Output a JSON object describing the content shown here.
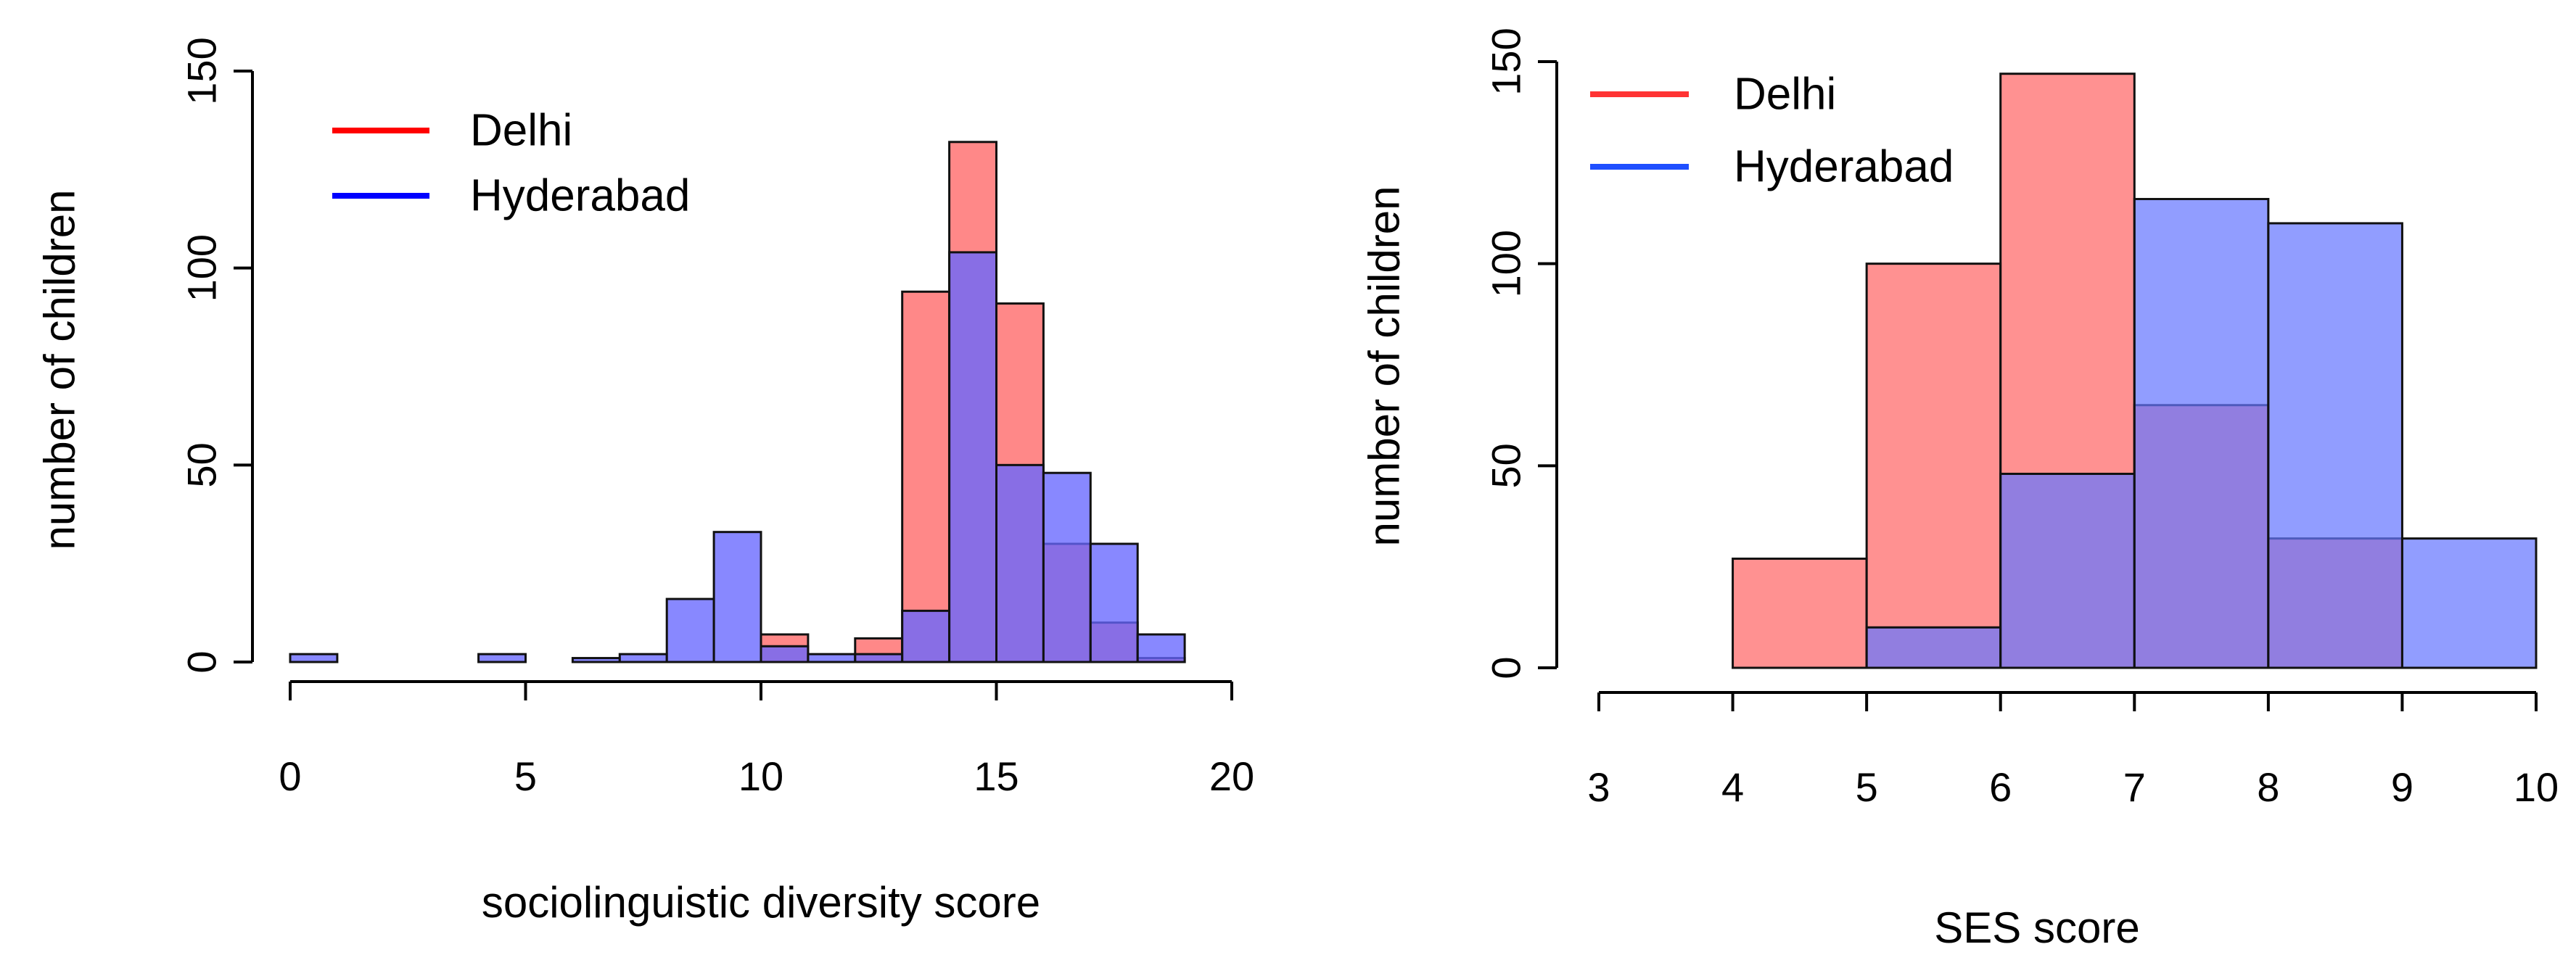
{
  "chart_data": [
    {
      "type": "bar",
      "subtype": "overlapping-histogram",
      "title": "",
      "xlabel": "sociolinguistic diversity score",
      "ylabel": "number of children",
      "xlim": [
        0,
        20
      ],
      "ylim": [
        0,
        150
      ],
      "xticks": [
        0,
        5,
        10,
        15,
        20
      ],
      "yticks": [
        0,
        50,
        100,
        150
      ],
      "grid": false,
      "legend": {
        "position": "top-left",
        "entries": [
          "Delhi",
          "Hyderabad"
        ]
      },
      "series": [
        {
          "name": "Delhi",
          "color": "#ff0000",
          "fill": "#ff6666",
          "bins": [
            {
              "x0": 10,
              "x1": 11,
              "value": 7
            },
            {
              "x0": 12,
              "x1": 13,
              "value": 6
            },
            {
              "x0": 13,
              "x1": 14,
              "value": 94
            },
            {
              "x0": 14,
              "x1": 15,
              "value": 132
            },
            {
              "x0": 15,
              "x1": 16,
              "value": 91
            },
            {
              "x0": 16,
              "x1": 17,
              "value": 30
            },
            {
              "x0": 17,
              "x1": 18,
              "value": 10
            },
            {
              "x0": 18,
              "x1": 19,
              "value": 1
            }
          ]
        },
        {
          "name": "Hyderabad",
          "color": "#0000ff",
          "fill": "#6666ff",
          "bins": [
            {
              "x0": 0,
              "x1": 1,
              "value": 2
            },
            {
              "x0": 4,
              "x1": 5,
              "value": 2
            },
            {
              "x0": 6,
              "x1": 7,
              "value": 1
            },
            {
              "x0": 7,
              "x1": 8,
              "value": 2
            },
            {
              "x0": 8,
              "x1": 9,
              "value": 16
            },
            {
              "x0": 9,
              "x1": 10,
              "value": 33
            },
            {
              "x0": 10,
              "x1": 11,
              "value": 4
            },
            {
              "x0": 11,
              "x1": 12,
              "value": 2
            },
            {
              "x0": 12,
              "x1": 13,
              "value": 2
            },
            {
              "x0": 13,
              "x1": 14,
              "value": 13
            },
            {
              "x0": 14,
              "x1": 15,
              "value": 104
            },
            {
              "x0": 15,
              "x1": 16,
              "value": 50
            },
            {
              "x0": 16,
              "x1": 17,
              "value": 48
            },
            {
              "x0": 17,
              "x1": 18,
              "value": 30
            },
            {
              "x0": 18,
              "x1": 19,
              "value": 7
            }
          ]
        }
      ]
    },
    {
      "type": "bar",
      "subtype": "overlapping-histogram",
      "title": "",
      "xlabel": "SES score",
      "ylabel": "number of children",
      "xlim": [
        3,
        10
      ],
      "ylim": [
        0,
        150
      ],
      "xticks": [
        3,
        4,
        5,
        6,
        7,
        8,
        9,
        10
      ],
      "yticks": [
        0,
        50,
        100,
        150
      ],
      "grid": false,
      "legend": {
        "position": "top-left",
        "entries": [
          "Delhi",
          "Hyderabad"
        ]
      },
      "series": [
        {
          "name": "Delhi",
          "color": "#ff3333",
          "fill": "#ff6666",
          "bins": [
            {
              "x0": 4,
              "x1": 5,
              "value": 27
            },
            {
              "x0": 5,
              "x1": 6,
              "value": 100
            },
            {
              "x0": 6,
              "x1": 7,
              "value": 147
            },
            {
              "x0": 7,
              "x1": 8,
              "value": 65
            },
            {
              "x0": 8,
              "x1": 9,
              "value": 32
            }
          ]
        },
        {
          "name": "Hyderabad",
          "color": "#1f4fff",
          "fill": "#6677ff",
          "bins": [
            {
              "x0": 5,
              "x1": 6,
              "value": 10
            },
            {
              "x0": 6,
              "x1": 7,
              "value": 48
            },
            {
              "x0": 7,
              "x1": 8,
              "value": 116
            },
            {
              "x0": 8,
              "x1": 9,
              "value": 110
            },
            {
              "x0": 9,
              "x1": 10,
              "value": 32
            }
          ]
        }
      ]
    }
  ]
}
